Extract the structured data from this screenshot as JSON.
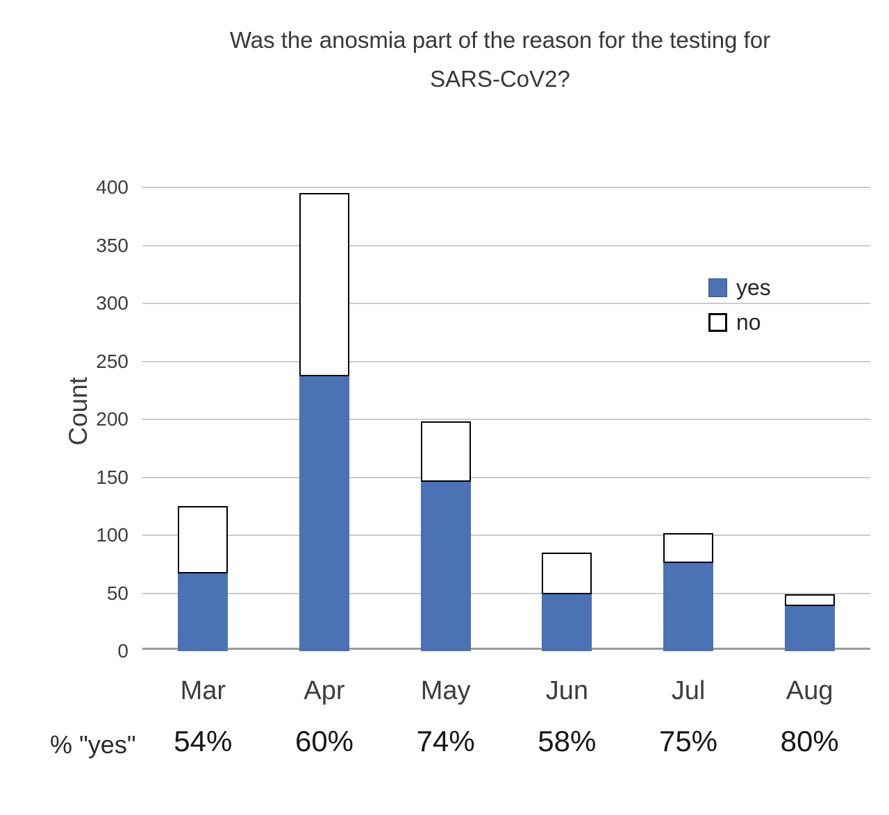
{
  "chart_data": {
    "type": "bar",
    "stacked": true,
    "title": "Was the anosmia part of the reason for the testing for SARS-CoV2?",
    "title_lines": [
      "Was the anosmia part of the reason for the testing for",
      "SARS-CoV2?"
    ],
    "ylabel": "Count",
    "categories": [
      "Mar",
      "Apr",
      "May",
      "Jun",
      "Jul",
      "Aug"
    ],
    "series": [
      {
        "name": "yes",
        "color": "#4A72B4",
        "values": [
          67,
          237,
          146,
          49,
          76,
          39
        ]
      },
      {
        "name": "no",
        "color": "#FFFFFF",
        "values": [
          58,
          158,
          52,
          36,
          26,
          10
        ]
      }
    ],
    "totals": [
      125,
      395,
      198,
      85,
      102,
      49
    ],
    "pct_row_label": "% \"yes\"",
    "pct_yes": [
      "54%",
      "60%",
      "74%",
      "58%",
      "75%",
      "80%"
    ],
    "y_ticks": [
      0,
      50,
      100,
      150,
      200,
      250,
      300,
      350,
      400
    ],
    "ylim": [
      0,
      400
    ],
    "grid": true,
    "legend_position": "upper-right"
  },
  "legend": {
    "items": [
      {
        "label": "yes"
      },
      {
        "label": "no"
      }
    ]
  },
  "colors": {
    "yes_fill": "#4A72B4",
    "no_fill": "#FFFFFF",
    "bar_border": "#000000",
    "gridline": "#CBCBCB",
    "axis_line": "#9B9B9B",
    "text": "#3D3D3D"
  }
}
